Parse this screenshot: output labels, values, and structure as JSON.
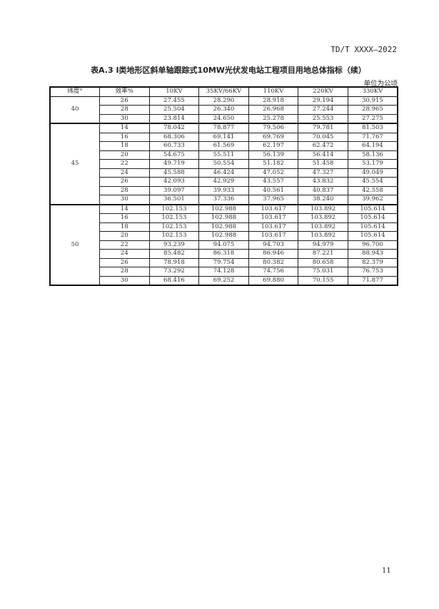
{
  "header": {
    "doc_code": "TD/T XXXX—2022"
  },
  "title": "表A.3 Ⅰ类地形区斜单轴跟踪式10MW光伏发电站工程项目用地总体指标（续）",
  "unit": "单位为公顷",
  "table": {
    "columns": [
      "纬度°",
      "效率%",
      "10KV",
      "35KV/66KV",
      "110KV",
      "220KV",
      "330KV"
    ],
    "groups": [
      {
        "latitude": "40",
        "rows": [
          [
            "26",
            "27.455",
            "28.290",
            "28.918",
            "29.194",
            "30.915"
          ],
          [
            "28",
            "25.504",
            "26.340",
            "26.968",
            "27.244",
            "28.965"
          ],
          [
            "30",
            "23.814",
            "24.650",
            "25.278",
            "25.553",
            "27.275"
          ]
        ]
      },
      {
        "latitude": "45",
        "rows": [
          [
            "14",
            "78.042",
            "78.877",
            "79.506",
            "79.781",
            "81.503"
          ],
          [
            "16",
            "68.306",
            "69.141",
            "69.769",
            "70.045",
            "71.767"
          ],
          [
            "18",
            "60.733",
            "61.569",
            "62.197",
            "62.472",
            "64.194"
          ],
          [
            "20",
            "54.675",
            "55.511",
            "56.139",
            "56.414",
            "58.136"
          ],
          [
            "22",
            "49.719",
            "50.554",
            "51.182",
            "51.458",
            "53.179"
          ],
          [
            "24",
            "45.588",
            "46.424",
            "47.052",
            "47.327",
            "49.049"
          ],
          [
            "26",
            "42.093",
            "42.929",
            "43.557",
            "43.832",
            "45.554"
          ],
          [
            "28",
            "39.097",
            "39.933",
            "40.561",
            "40.837",
            "42.558"
          ],
          [
            "30",
            "36.501",
            "37.336",
            "37.965",
            "38.240",
            "39.962"
          ]
        ]
      },
      {
        "latitude": "50",
        "rows": [
          [
            "14",
            "102.153",
            "102.988",
            "103.617",
            "103.892",
            "105.614"
          ],
          [
            "16",
            "102.153",
            "102.988",
            "103.617",
            "103.892",
            "105.614"
          ],
          [
            "18",
            "102.153",
            "102.988",
            "103.617",
            "103.892",
            "105.614"
          ],
          [
            "20",
            "102.153",
            "102.988",
            "103.617",
            "103.892",
            "105.614"
          ],
          [
            "22",
            "93.239",
            "94.075",
            "94.703",
            "94.979",
            "96.700"
          ],
          [
            "24",
            "85.482",
            "86.318",
            "86.946",
            "87.221",
            "88.943"
          ],
          [
            "26",
            "78.918",
            "79.754",
            "80.382",
            "80.658",
            "82.379"
          ],
          [
            "28",
            "73.292",
            "74.128",
            "74.756",
            "75.031",
            "76.753"
          ],
          [
            "30",
            "68.416",
            "69.252",
            "69.880",
            "70.155",
            "71.877"
          ]
        ]
      }
    ]
  },
  "footer": {
    "page_number": "11"
  }
}
